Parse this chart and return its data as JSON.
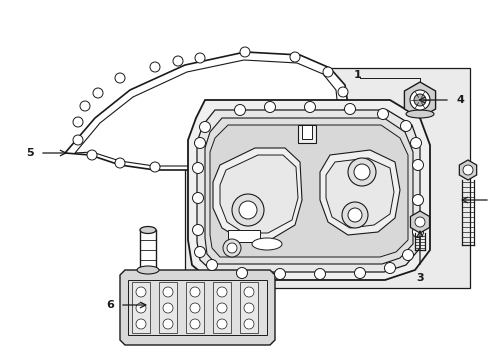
{
  "background_color": "#ffffff",
  "line_color": "#1a1a1a",
  "bg_box_color": "#ebebeb",
  "pan_outer_color": "#f0f0f0",
  "pan_mid_color": "#e8e8e8",
  "pan_inner_color": "#e0e0e0",
  "pan_floor_color": "#d8d8d8",
  "part_gray": "#d0d0d0",
  "part_dark": "#b8b8b8"
}
